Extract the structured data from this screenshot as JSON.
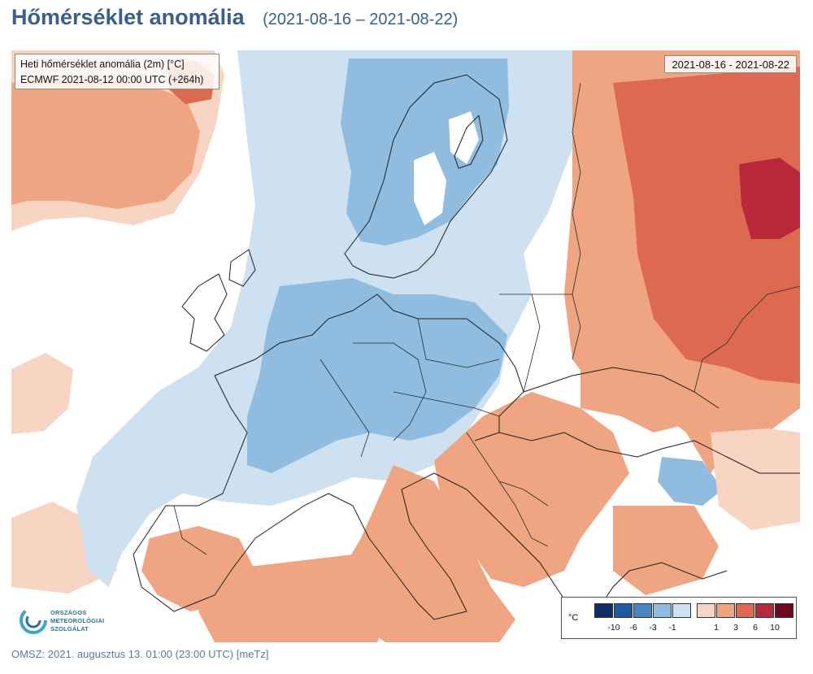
{
  "header": {
    "title": "Hőmérséklet anomália",
    "date_range": "(2021-08-16 – 2021-08-22)"
  },
  "map": {
    "info_line1": "Heti hőmérséklet anomália (2m) [°C]",
    "info_line2": "ECMWF 2021-08-12 00:00 UTC (+264h)",
    "date_label": "2021-08-16 - 2021-08-22"
  },
  "legend": {
    "unit": "°C",
    "cold_colors": [
      "#0f2d66",
      "#1f5aa0",
      "#4a86c2",
      "#8fbcdf",
      "#cde1f0"
    ],
    "warm_colors": [
      "#f8d4c2",
      "#f0a582",
      "#dd6a50",
      "#b8283a",
      "#6e0a20"
    ],
    "ticks_cold": [
      "-10",
      "-6",
      "-3",
      "-1"
    ],
    "ticks_warm": [
      "1",
      "3",
      "6",
      "10"
    ]
  },
  "logo": {
    "line1": "ORSZÁGOS",
    "line2": "METEOROLÓGIAI",
    "line3": "SZOLGÁLAT"
  },
  "footer": {
    "text": "OMSZ: 2021. augusztus 13. 01:00 (23:00  UTC)  [meTz]"
  }
}
